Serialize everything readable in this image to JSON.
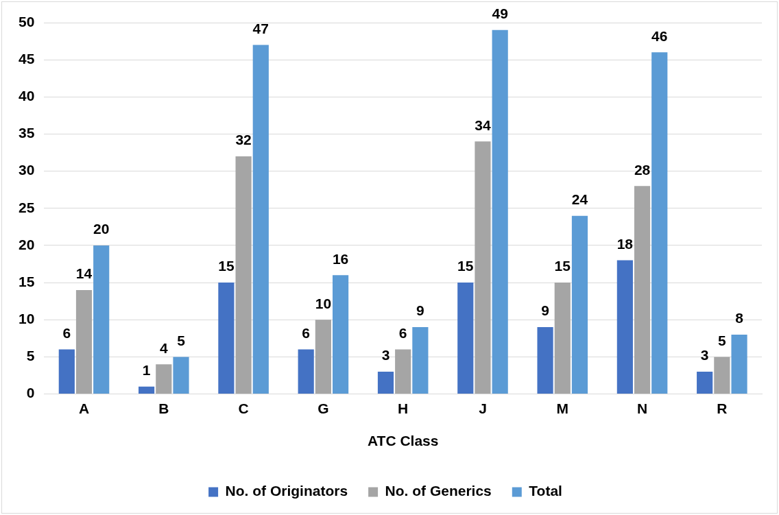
{
  "chart_data": {
    "type": "bar",
    "xlabel": "ATC Class",
    "categories": [
      "A",
      "B",
      "C",
      "G",
      "H",
      "J",
      "M",
      "N",
      "R"
    ],
    "series": [
      {
        "name": "No. of Originators",
        "color": "#4472c4",
        "values": [
          6,
          1,
          15,
          6,
          3,
          15,
          9,
          18,
          3
        ]
      },
      {
        "name": "No. of Generics",
        "color": "#a5a5a5",
        "values": [
          14,
          4,
          32,
          10,
          6,
          34,
          15,
          28,
          5
        ]
      },
      {
        "name": "Total",
        "color": "#5b9bd5",
        "values": [
          20,
          5,
          47,
          16,
          9,
          49,
          24,
          46,
          8
        ]
      }
    ],
    "ylim": [
      0,
      50
    ],
    "yticks": [
      0,
      5,
      10,
      15,
      20,
      25,
      30,
      35,
      40,
      45,
      50
    ],
    "grid": "y",
    "legend": "bottom",
    "data_labels": true
  }
}
